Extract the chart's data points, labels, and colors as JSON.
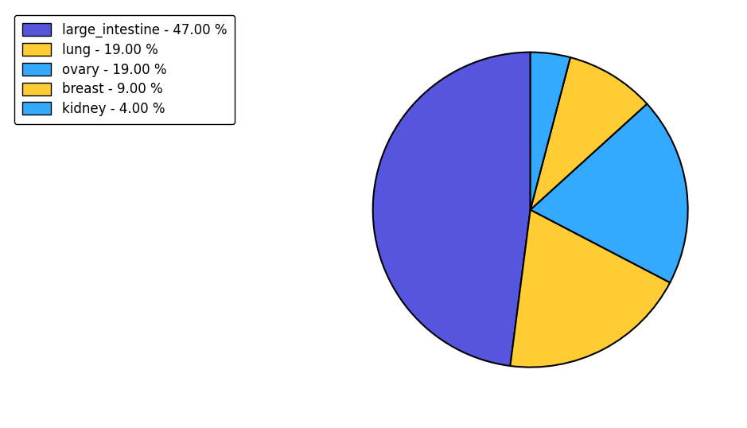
{
  "labels": [
    "large_intestine",
    "lung",
    "ovary",
    "breast",
    "kidney"
  ],
  "values": [
    47.0,
    19.0,
    19.0,
    9.0,
    4.0
  ],
  "colors": [
    "#5555dd",
    "#ffcc33",
    "#33aaff",
    "#ffcc33",
    "#33aaff"
  ],
  "legend_labels": [
    "large_intestine - 47.00 %",
    "lung - 19.00 %",
    "ovary - 19.00 %",
    "breast - 9.00 %",
    "kidney - 4.00 %"
  ],
  "startangle": 90,
  "background_color": "#ffffff",
  "legend_fontsize": 12,
  "edge_color": "black",
  "edge_linewidth": 1.5
}
